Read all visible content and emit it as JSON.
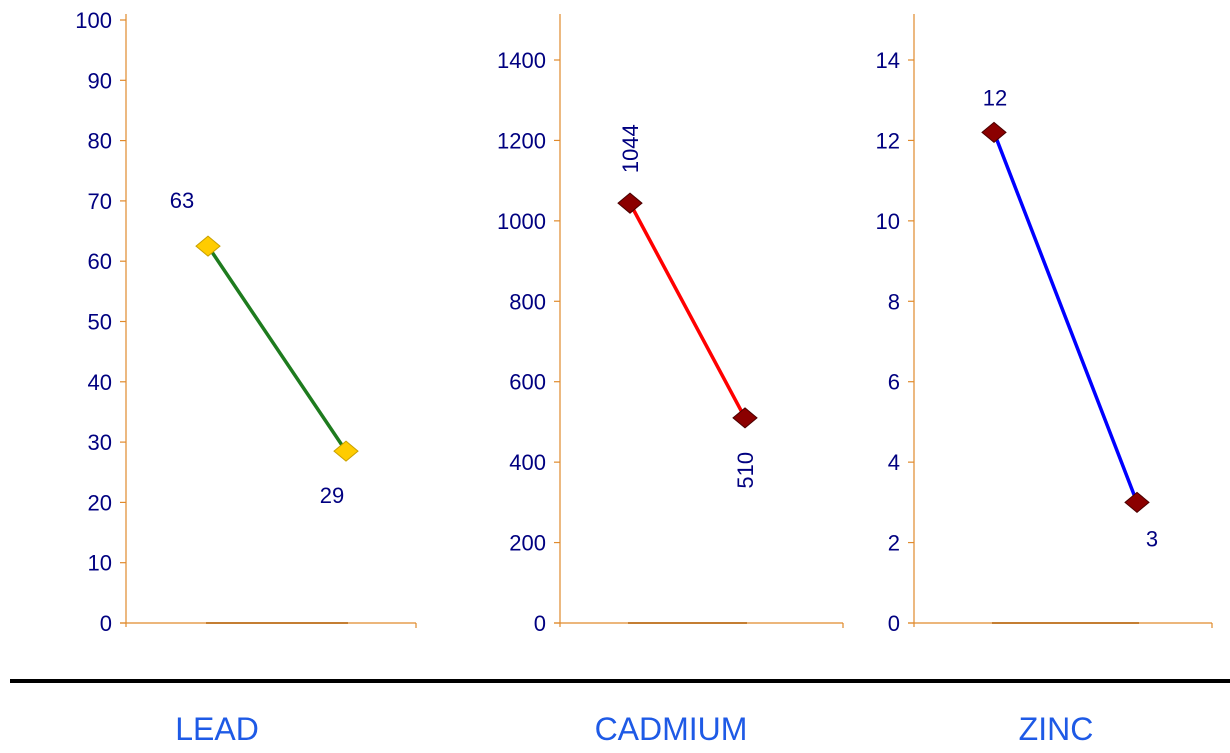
{
  "colors": {
    "axis": "#E08A2C",
    "tick_text": "#000080",
    "data_label_text": "#000080",
    "title_text": "#1E5AE6",
    "separator": "#000000"
  },
  "chart_data": [
    {
      "type": "line",
      "title": "LEAD",
      "ylim": [
        0,
        100
      ],
      "yticks": [
        0,
        10,
        20,
        30,
        40,
        50,
        60,
        70,
        80,
        90,
        100
      ],
      "grid": false,
      "series": [
        {
          "values": [
            62.5,
            28.5
          ],
          "data_labels": [
            "63",
            "29"
          ],
          "line_color": "#1E7B1E",
          "marker": "diamond",
          "marker_color": "#FFCC00",
          "marker_edge": "#C8A000"
        }
      ]
    },
    {
      "type": "line",
      "title": "CADMIUM",
      "ylim": [
        0,
        1500
      ],
      "yticks": [
        0,
        200,
        400,
        600,
        800,
        1000,
        1200,
        1400
      ],
      "grid": false,
      "series": [
        {
          "values": [
            1044,
            510
          ],
          "data_labels": [
            "1044",
            "510"
          ],
          "line_color": "#FF0000",
          "marker": "diamond",
          "marker_color": "#8B0000",
          "marker_edge": "#4A0000"
        }
      ]
    },
    {
      "type": "line",
      "title": "ZINC",
      "ylim": [
        0,
        15
      ],
      "yticks": [
        0,
        2,
        4,
        6,
        8,
        10,
        12,
        14
      ],
      "grid": false,
      "series": [
        {
          "values": [
            12.2,
            3
          ],
          "data_labels": [
            "12",
            "3"
          ],
          "line_color": "#0000FF",
          "marker": "diamond",
          "marker_color": "#8B0000",
          "marker_edge": "#4A0000"
        }
      ]
    }
  ]
}
